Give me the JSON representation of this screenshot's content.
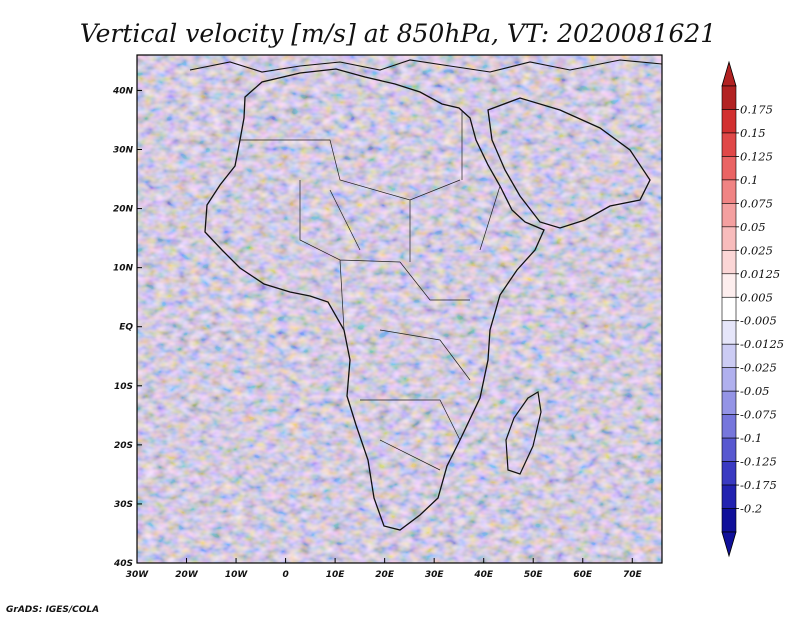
{
  "title": "Vertical velocity [m/s] at 850hPa, VT: 2020081621",
  "credit": "GrADS: IGES/COLA",
  "map": {
    "lon_range": [
      -30,
      76
    ],
    "lat_range": [
      -40,
      46
    ],
    "x_ticks": [
      "30W",
      "20W",
      "10W",
      "0",
      "10E",
      "20E",
      "30E",
      "40E",
      "50E",
      "60E",
      "70E"
    ],
    "y_ticks": [
      "40N",
      "30N",
      "20N",
      "10N",
      "EQ",
      "10S",
      "20S",
      "30S",
      "40S"
    ]
  },
  "colorbar": {
    "labels": [
      "0.175",
      "0.15",
      "0.125",
      "0.1",
      "0.075",
      "0.05",
      "0.025",
      "0.0125",
      "0.005",
      "-0.005",
      "-0.0125",
      "-0.025",
      "-0.05",
      "-0.075",
      "-0.1",
      "-0.125",
      "-0.175",
      "-0.2"
    ],
    "colors": [
      "#b22222",
      "#d23030",
      "#e04848",
      "#ea6464",
      "#f08484",
      "#f4a0a0",
      "#f8bcbc",
      "#fbd6d6",
      "#fdeeee",
      "#ffffff",
      "#e6e6fa",
      "#ccccf4",
      "#b0b0ee",
      "#9494e6",
      "#7676dc",
      "#5858d0",
      "#3a3ac2",
      "#2222b0",
      "#10109a"
    ]
  }
}
